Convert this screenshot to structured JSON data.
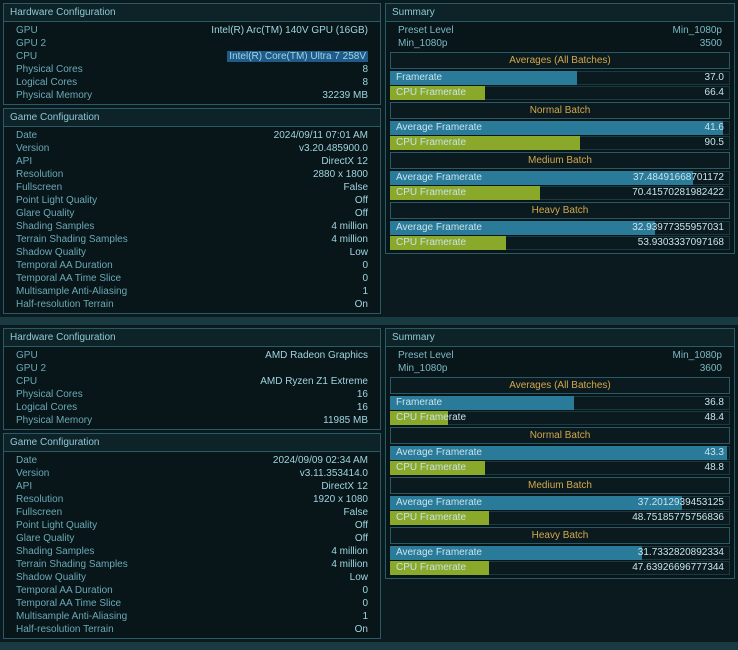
{
  "blocks": [
    {
      "hw_header": "Hardware Configuration",
      "hw_rows": [
        {
          "label": "GPU",
          "value": "Intel(R) Arc(TM) 140V GPU (16GB)"
        },
        {
          "label": "GPU 2",
          "value": ""
        },
        {
          "label": "CPU",
          "value": "Intel(R) Core(TM) Ultra 7 258V",
          "highlight": true
        },
        {
          "label": "Physical Cores",
          "value": "8"
        },
        {
          "label": "Logical Cores",
          "value": "8"
        },
        {
          "label": "Physical Memory",
          "value": "32239 MB"
        }
      ],
      "game_header": "Game Configuration",
      "game_rows": [
        {
          "label": "Date",
          "value": "2024/09/11 07:01 AM"
        },
        {
          "label": "Version",
          "value": "v3.20.485900.0"
        },
        {
          "label": "API",
          "value": "DirectX 12"
        },
        {
          "label": "Resolution",
          "value": "2880 x 1800"
        },
        {
          "label": "Fullscreen",
          "value": "False"
        },
        {
          "label": "Point Light Quality",
          "value": "Off"
        },
        {
          "label": "Glare Quality",
          "value": "Off"
        },
        {
          "label": "Shading Samples",
          "value": "4 million"
        },
        {
          "label": "Terrain Shading Samples",
          "value": "4 million"
        },
        {
          "label": "Shadow Quality",
          "value": "Low"
        },
        {
          "label": "Temporal AA Duration",
          "value": "0"
        },
        {
          "label": "Temporal AA Time Slice",
          "value": "0"
        },
        {
          "label": "Multisample Anti-Aliasing",
          "value": "1"
        },
        {
          "label": "Half-resolution Terrain",
          "value": "On"
        }
      ],
      "summary_header": "Summary",
      "summary_rows": [
        {
          "label": "Preset Level",
          "value": "Min_1080p"
        },
        {
          "label": "Min_1080p",
          "value": "3500"
        }
      ],
      "sections": [
        {
          "title": "Averages (All Batches)",
          "bars": [
            {
              "label": "Framerate",
              "value": "37.0",
              "pct": 55,
              "color": "blue"
            },
            {
              "label": "CPU Framerate",
              "value": "66.4",
              "pct": 28,
              "color": "green"
            }
          ]
        },
        {
          "title": "Normal Batch",
          "bars": [
            {
              "label": "Average Framerate",
              "value": "41.6",
              "pct": 98,
              "color": "blue"
            },
            {
              "label": "CPU Framerate",
              "value": "90.5",
              "pct": 56,
              "color": "green"
            }
          ]
        },
        {
          "title": "Medium Batch",
          "bars": [
            {
              "label": "Average Framerate",
              "value": "37.48491668701172",
              "pct": 89,
              "color": "blue"
            },
            {
              "label": "CPU Framerate",
              "value": "70.41570281982422",
              "pct": 44,
              "color": "green"
            }
          ]
        },
        {
          "title": "Heavy Batch",
          "bars": [
            {
              "label": "Average Framerate",
              "value": "32.93977355957031",
              "pct": 78,
              "color": "blue"
            },
            {
              "label": "CPU Framerate",
              "value": "53.9303337097168",
              "pct": 34,
              "color": "green"
            }
          ]
        }
      ]
    },
    {
      "hw_header": "Hardware Configuration",
      "hw_rows": [
        {
          "label": "GPU",
          "value": "AMD Radeon Graphics"
        },
        {
          "label": "GPU 2",
          "value": ""
        },
        {
          "label": "CPU",
          "value": "AMD Ryzen Z1 Extreme"
        },
        {
          "label": "Physical Cores",
          "value": "16"
        },
        {
          "label": "Logical Cores",
          "value": "16"
        },
        {
          "label": "Physical Memory",
          "value": "11985 MB"
        }
      ],
      "game_header": "Game Configuration",
      "game_rows": [
        {
          "label": "Date",
          "value": "2024/09/09 02:34 AM"
        },
        {
          "label": "Version",
          "value": "v3.11.353414.0"
        },
        {
          "label": "API",
          "value": "DirectX 12"
        },
        {
          "label": "Resolution",
          "value": "1920 x 1080"
        },
        {
          "label": "Fullscreen",
          "value": "False"
        },
        {
          "label": "Point Light Quality",
          "value": "Off"
        },
        {
          "label": "Glare Quality",
          "value": "Off"
        },
        {
          "label": "Shading Samples",
          "value": "4 million"
        },
        {
          "label": "Terrain Shading Samples",
          "value": "4 million"
        },
        {
          "label": "Shadow Quality",
          "value": "Low"
        },
        {
          "label": "Temporal AA Duration",
          "value": "0"
        },
        {
          "label": "Temporal AA Time Slice",
          "value": "0"
        },
        {
          "label": "Multisample Anti-Aliasing",
          "value": "1"
        },
        {
          "label": "Half-resolution Terrain",
          "value": "On"
        }
      ],
      "summary_header": "Summary",
      "summary_rows": [
        {
          "label": "Preset Level",
          "value": "Min_1080p"
        },
        {
          "label": "Min_1080p",
          "value": "3600"
        }
      ],
      "sections": [
        {
          "title": "Averages (All Batches)",
          "bars": [
            {
              "label": "Framerate",
              "value": "36.8",
              "pct": 54,
              "color": "blue"
            },
            {
              "label": "CPU Framerate",
              "value": "48.4",
              "pct": 17,
              "color": "green"
            }
          ]
        },
        {
          "title": "Normal Batch",
          "bars": [
            {
              "label": "Average Framerate",
              "value": "43.3",
              "pct": 99,
              "color": "blue"
            },
            {
              "label": "CPU Framerate",
              "value": "48.8",
              "pct": 28,
              "color": "green"
            }
          ]
        },
        {
          "title": "Medium Batch",
          "bars": [
            {
              "label": "Average Framerate",
              "value": "37.2012939453125",
              "pct": 86,
              "color": "blue"
            },
            {
              "label": "CPU Framerate",
              "value": "48.75185775756836",
              "pct": 29,
              "color": "green"
            }
          ]
        },
        {
          "title": "Heavy Batch",
          "bars": [
            {
              "label": "Average Framerate",
              "value": "31.7332820892334",
              "pct": 74,
              "color": "blue"
            },
            {
              "label": "CPU Framerate",
              "value": "47.63926696777344",
              "pct": 29,
              "color": "green"
            }
          ]
        }
      ]
    }
  ]
}
